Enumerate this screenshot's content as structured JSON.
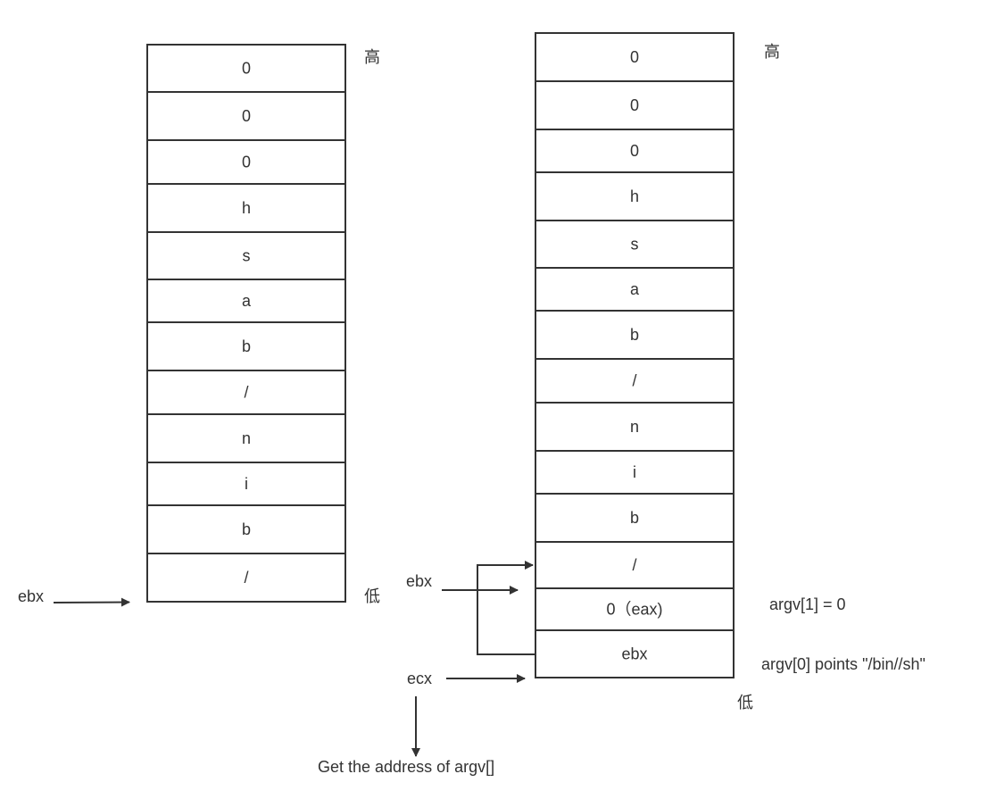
{
  "left_stack": {
    "cells": [
      "0",
      "0",
      "0",
      "h",
      "s",
      "a",
      "b",
      "/",
      "n",
      "i",
      "b",
      "/"
    ],
    "high_label": "高",
    "low_label": "低",
    "pointer_label": "ebx"
  },
  "right_stack": {
    "cells": [
      "0",
      "0",
      "0",
      "h",
      "s",
      "a",
      "b",
      "/",
      "n",
      "i",
      "b",
      "/",
      "0（eax)",
      "ebx"
    ],
    "high_label": "高",
    "low_label": "低",
    "ebx_label": "ebx",
    "ecx_label": "ecx",
    "argv1_note": "argv[1] = 0",
    "argv0_note": "argv[0] points \"/bin//sh\"",
    "ecx_note": "Get the address of argv[]"
  },
  "colors": {
    "stroke": "#333333",
    "text": "#333333",
    "background": "#ffffff"
  }
}
